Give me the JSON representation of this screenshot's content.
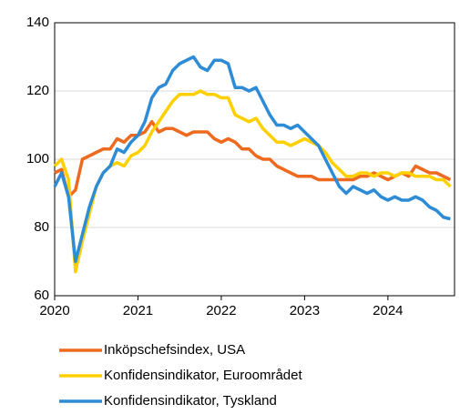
{
  "chart_data": {
    "type": "line",
    "x": [
      2020,
      2020.083,
      2020.167,
      2020.25,
      2020.333,
      2020.417,
      2020.5,
      2020.583,
      2020.667,
      2020.75,
      2020.833,
      2020.917,
      2021,
      2021.083,
      2021.167,
      2021.25,
      2021.333,
      2021.417,
      2021.5,
      2021.583,
      2021.667,
      2021.75,
      2021.833,
      2021.917,
      2022,
      2022.083,
      2022.167,
      2022.25,
      2022.333,
      2022.417,
      2022.5,
      2022.583,
      2022.667,
      2022.75,
      2022.833,
      2022.917,
      2023,
      2023.083,
      2023.167,
      2023.25,
      2023.333,
      2023.417,
      2023.5,
      2023.583,
      2023.667,
      2023.75,
      2023.833,
      2023.917,
      2024,
      2024.083,
      2024.167,
      2024.25,
      2024.333,
      2024.417,
      2024.5,
      2024.583,
      2024.667,
      2024.75
    ],
    "xlim": [
      2020,
      2024.8
    ],
    "xticks": [
      2020,
      2021,
      2022,
      2023,
      2024
    ],
    "ylim": [
      60,
      140
    ],
    "yticks": [
      60,
      80,
      100,
      120,
      140
    ],
    "grid": true,
    "series": [
      {
        "name": "Inköpschefsindex, USA",
        "color": "#ee6a1e",
        "values": [
          96,
          97,
          89,
          91,
          100,
          101,
          102,
          103,
          103,
          106,
          105,
          107,
          107,
          108,
          111,
          108,
          109,
          109,
          108,
          107,
          108,
          108,
          108,
          106,
          105,
          106,
          105,
          103,
          103,
          101,
          100,
          100,
          98,
          97,
          96,
          95,
          95,
          95,
          94,
          94,
          94,
          94,
          94,
          94,
          95,
          95,
          96,
          95,
          94,
          95,
          96,
          95,
          98,
          97,
          96,
          96,
          95,
          94
        ]
      },
      {
        "name": "Konfidensindikator, Euroområdet",
        "color": "#ffd000",
        "values": [
          98,
          100,
          94,
          67,
          76,
          84,
          92,
          96,
          98,
          99,
          98,
          101,
          102,
          104,
          108,
          111,
          114,
          117,
          119,
          119,
          119,
          120,
          119,
          119,
          118,
          118,
          113,
          112,
          111,
          112,
          109,
          107,
          105,
          105,
          104,
          105,
          106,
          105,
          104,
          102,
          99,
          97,
          95,
          95,
          96,
          96,
          95,
          96,
          96,
          95,
          96,
          96,
          95,
          95,
          95,
          94,
          94,
          92
        ]
      },
      {
        "name": "Konfidensindikator, Tyskland",
        "color": "#2e8bd6",
        "values": [
          92,
          96,
          89,
          70,
          78,
          86,
          92,
          96,
          98,
          103,
          102,
          105,
          107,
          111,
          118,
          121,
          122,
          126,
          128,
          129,
          130,
          127,
          126,
          129,
          129,
          128,
          121,
          121,
          120,
          121,
          117,
          113,
          110,
          110,
          109,
          110,
          108,
          106,
          104,
          100,
          96,
          92,
          90,
          92,
          91,
          90,
          91,
          89,
          88,
          89,
          88,
          88,
          89,
          88,
          86,
          85,
          83,
          82.5
        ]
      }
    ]
  }
}
